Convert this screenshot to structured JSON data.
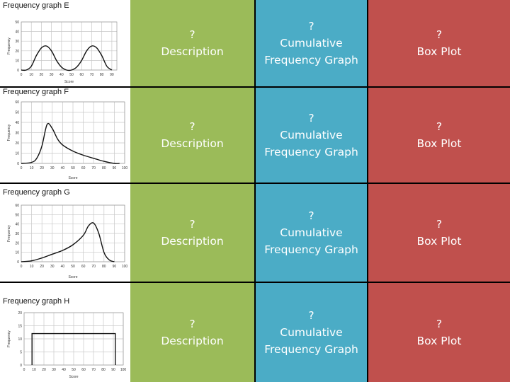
{
  "question_mark": "?",
  "columns": {
    "description": "Description",
    "cumulative_line1": "Cumulative",
    "cumulative_line2": "Frequency Graph",
    "box_plot": "Box Plot"
  },
  "colors": {
    "description": "#9bbb59",
    "cumulative": "#4bacc6",
    "box_plot": "#c0504d"
  },
  "graphs": [
    {
      "title": "Frequency graph E",
      "ylabel": "Frequency",
      "xlabel": "Score",
      "yticks": [
        "50",
        "40",
        "30",
        "20",
        "10",
        "0"
      ],
      "xticks": [
        "0",
        "10",
        "20",
        "30",
        "40",
        "50",
        "60",
        "70",
        "80",
        "90"
      ],
      "shape": "bimodal"
    },
    {
      "title": "Frequency graph F",
      "ylabel": "Frequency",
      "xlabel": "Score",
      "yticks": [
        "60",
        "50",
        "40",
        "30",
        "20",
        "10",
        "0"
      ],
      "xticks": [
        "0",
        "10",
        "20",
        "30",
        "40",
        "50",
        "60",
        "70",
        "80",
        "90",
        "100"
      ],
      "shape": "right-skewed"
    },
    {
      "title": "Frequency graph G",
      "ylabel": "Frequency",
      "xlabel": "Score",
      "yticks": [
        "60",
        "50",
        "40",
        "30",
        "20",
        "10",
        "0"
      ],
      "xticks": [
        "0",
        "10",
        "20",
        "30",
        "40",
        "50",
        "60",
        "70",
        "80",
        "90",
        "100"
      ],
      "shape": "left-skewed"
    },
    {
      "title": "Frequency graph H",
      "ylabel": "Frequency",
      "xlabel": "Score",
      "yticks": [
        "20",
        "15",
        "10",
        "5",
        "0"
      ],
      "xticks": [
        "0",
        "10",
        "20",
        "30",
        "40",
        "50",
        "60",
        "70",
        "80",
        "90",
        "100"
      ],
      "shape": "uniform"
    }
  ],
  "chart_data": [
    {
      "type": "line",
      "title": "Frequency graph E",
      "xlabel": "Score",
      "ylabel": "Frequency",
      "ylim": [
        0,
        50
      ],
      "xlim": [
        0,
        95
      ],
      "grid": true,
      "x": [
        0,
        5,
        10,
        15,
        20,
        25,
        30,
        35,
        40,
        45,
        50,
        55,
        60,
        65,
        70,
        75,
        80,
        85,
        90
      ],
      "series": [
        {
          "values": [
            0,
            0,
            4,
            15,
            23,
            25,
            20,
            10,
            3,
            0,
            0,
            3,
            10,
            20,
            25,
            23,
            15,
            4,
            0
          ]
        }
      ]
    },
    {
      "type": "line",
      "title": "Frequency graph F",
      "xlabel": "Score",
      "ylabel": "Frequency",
      "ylim": [
        0,
        60
      ],
      "xlim": [
        0,
        100
      ],
      "grid": true,
      "x": [
        0,
        10,
        15,
        20,
        25,
        30,
        35,
        40,
        50,
        60,
        70,
        80,
        90,
        95
      ],
      "series": [
        {
          "values": [
            0,
            1,
            5,
            17,
            38,
            34,
            24,
            18,
            12,
            8,
            5,
            2,
            0,
            0
          ]
        }
      ]
    },
    {
      "type": "line",
      "title": "Frequency graph G",
      "xlabel": "Score",
      "ylabel": "Frequency",
      "ylim": [
        0,
        60
      ],
      "xlim": [
        0,
        100
      ],
      "grid": true,
      "x": [
        0,
        10,
        20,
        30,
        40,
        50,
        60,
        65,
        70,
        75,
        80,
        85,
        90
      ],
      "series": [
        {
          "values": [
            0,
            1,
            4,
            8,
            12,
            18,
            28,
            38,
            41,
            30,
            10,
            2,
            0
          ]
        }
      ]
    },
    {
      "type": "line",
      "title": "Frequency graph H",
      "xlabel": "Score",
      "ylabel": "Frequency",
      "ylim": [
        0,
        20
      ],
      "xlim": [
        0,
        100
      ],
      "grid": true,
      "x": [
        8,
        8,
        10,
        90,
        92,
        92
      ],
      "series": [
        {
          "values": [
            0,
            12,
            12,
            12,
            12,
            0
          ]
        }
      ]
    }
  ]
}
